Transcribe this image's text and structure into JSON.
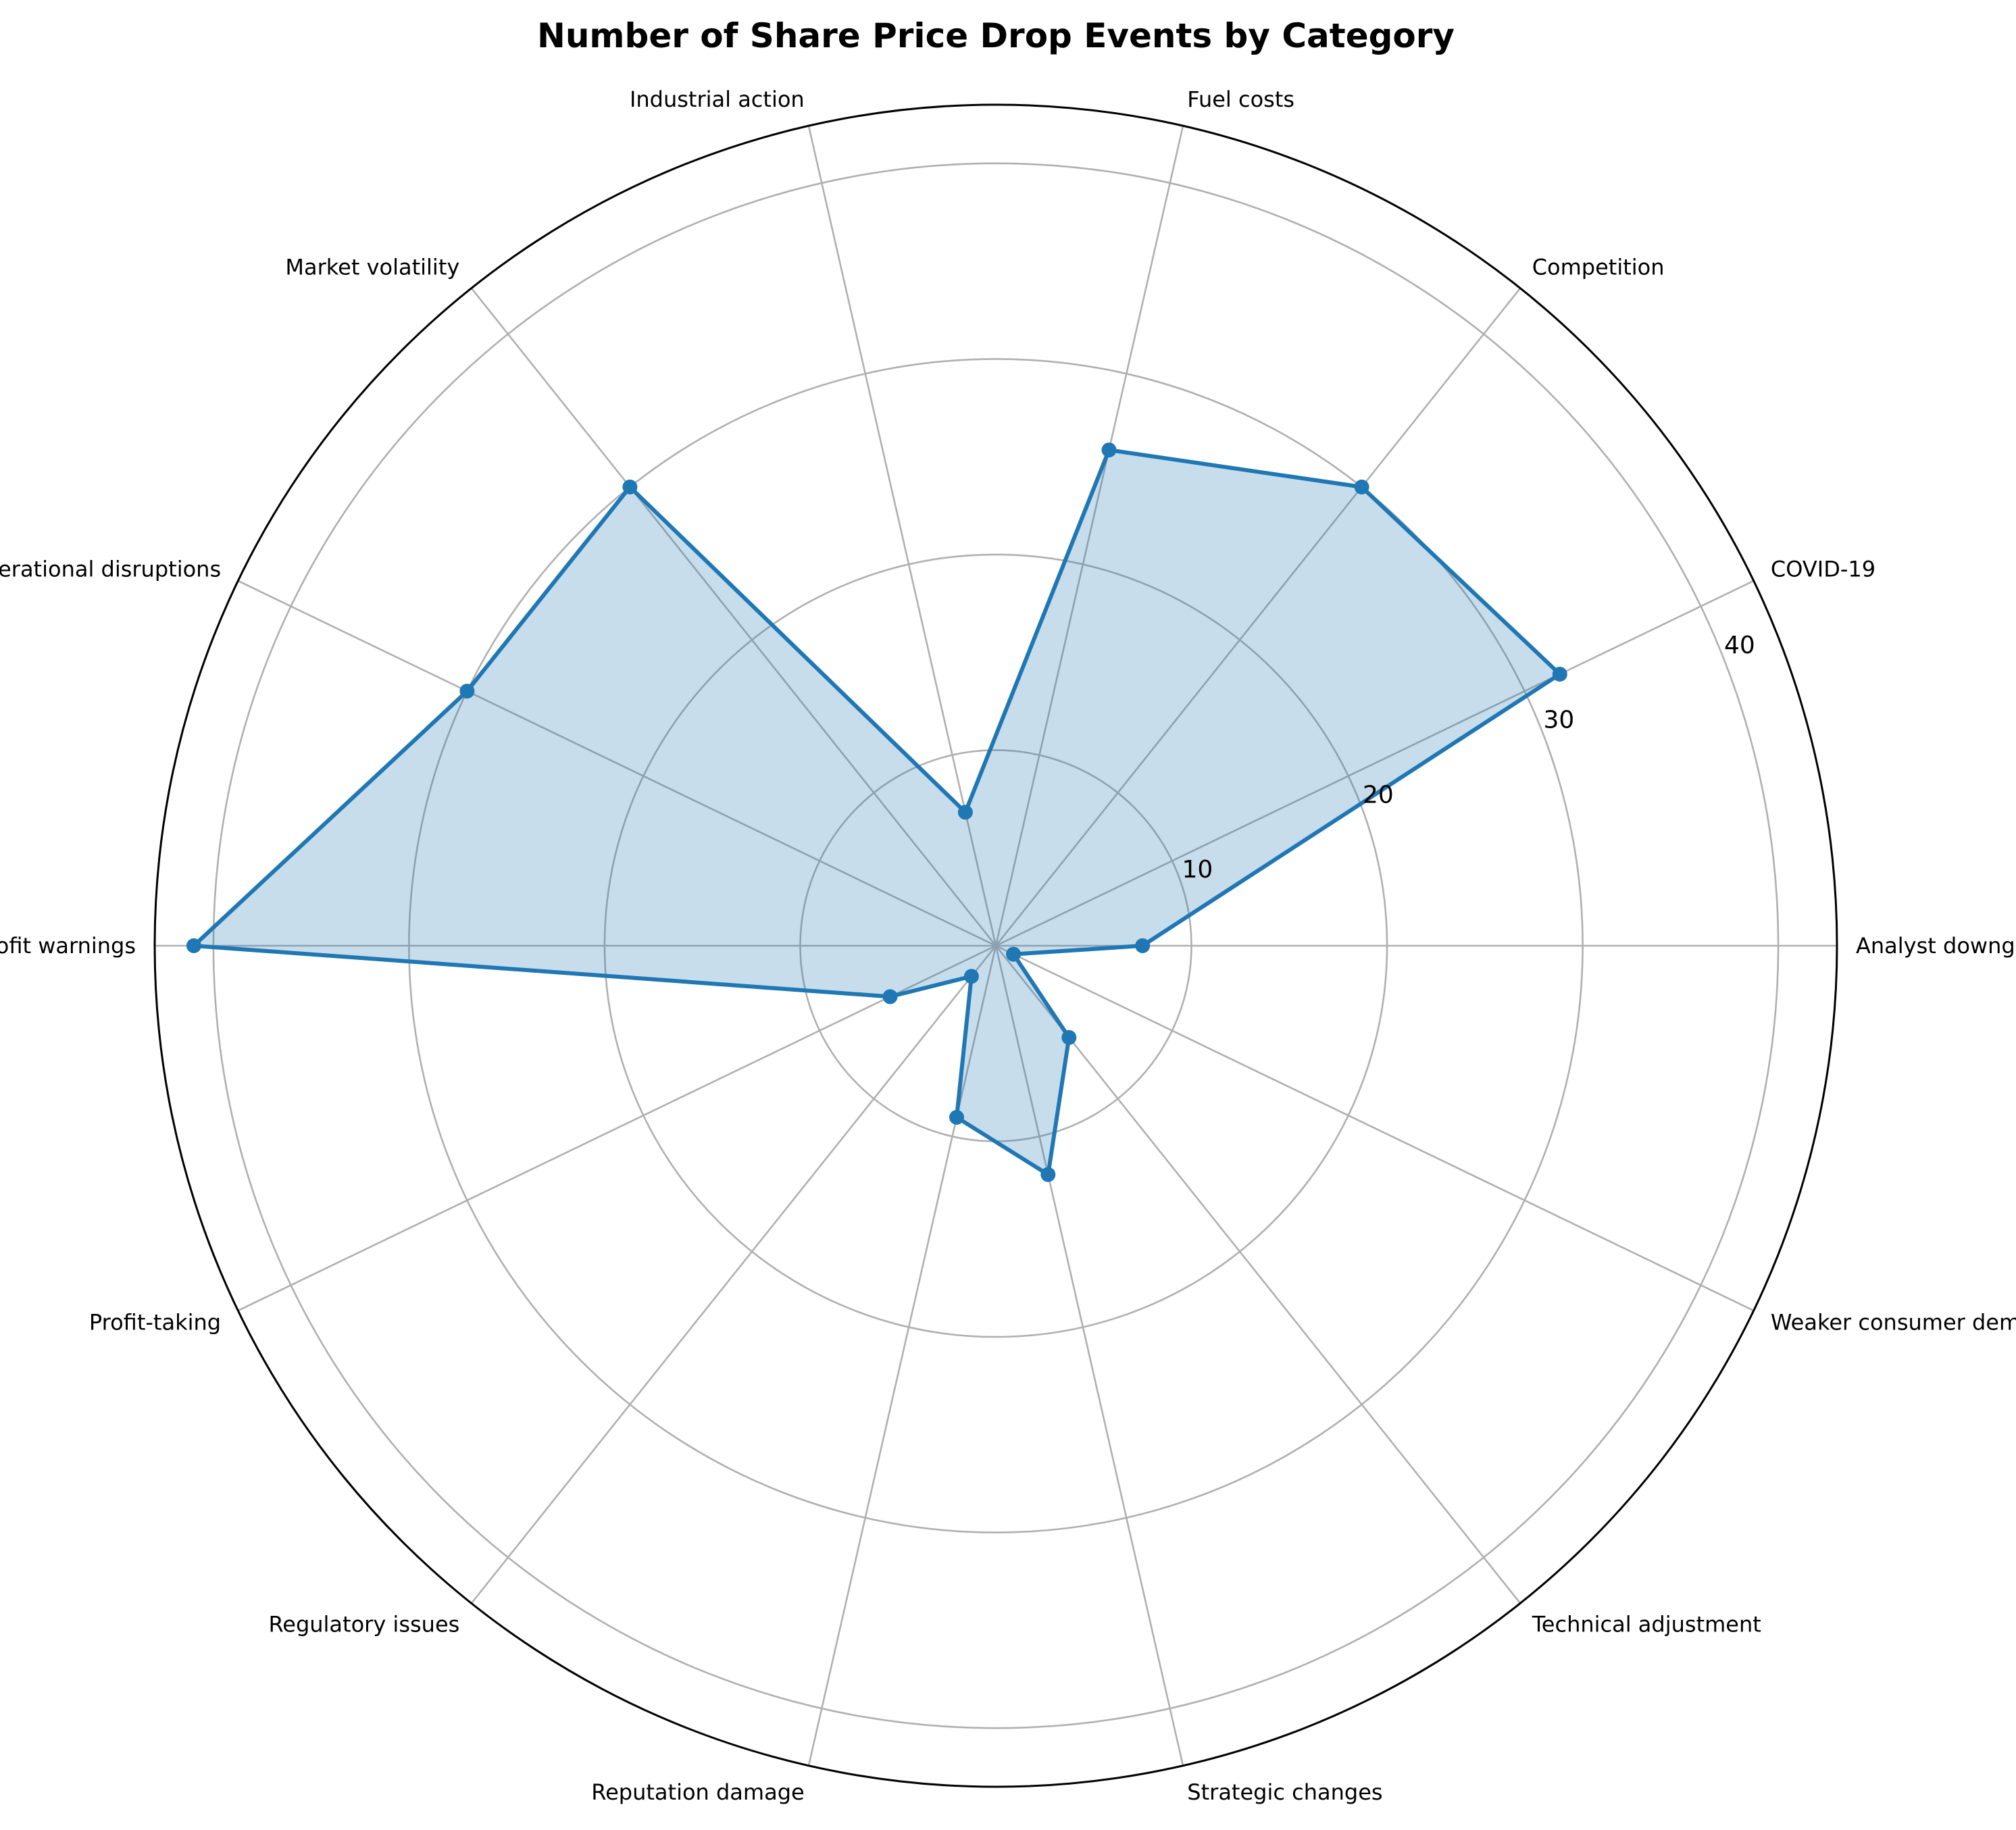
{
  "chart_data": {
    "type": "radar",
    "title": "Number of Share Price Drop Events by Category",
    "categories": [
      "Analyst downgrades",
      "COVID-19",
      "Competition",
      "Fuel costs",
      "Industrial action",
      "Market volatility",
      "Operational disruptions",
      "Profit warnings",
      "Profit-taking",
      "Regulatory issues",
      "Reputation damage",
      "Strategic changes",
      "Technical adjustment",
      "Weaker consumer demand"
    ],
    "values": [
      7.5,
      32,
      30,
      26,
      7,
      30,
      30,
      41,
      6,
      2,
      9,
      12,
      6,
      1
    ],
    "rlim": [
      0,
      43
    ],
    "r_ticks": [
      10,
      20,
      30,
      40
    ],
    "r_tick_labels": [
      "10",
      "20",
      "30",
      "40"
    ],
    "grid": true,
    "color": "#1f77b4",
    "fill_alpha": 0.25
  }
}
